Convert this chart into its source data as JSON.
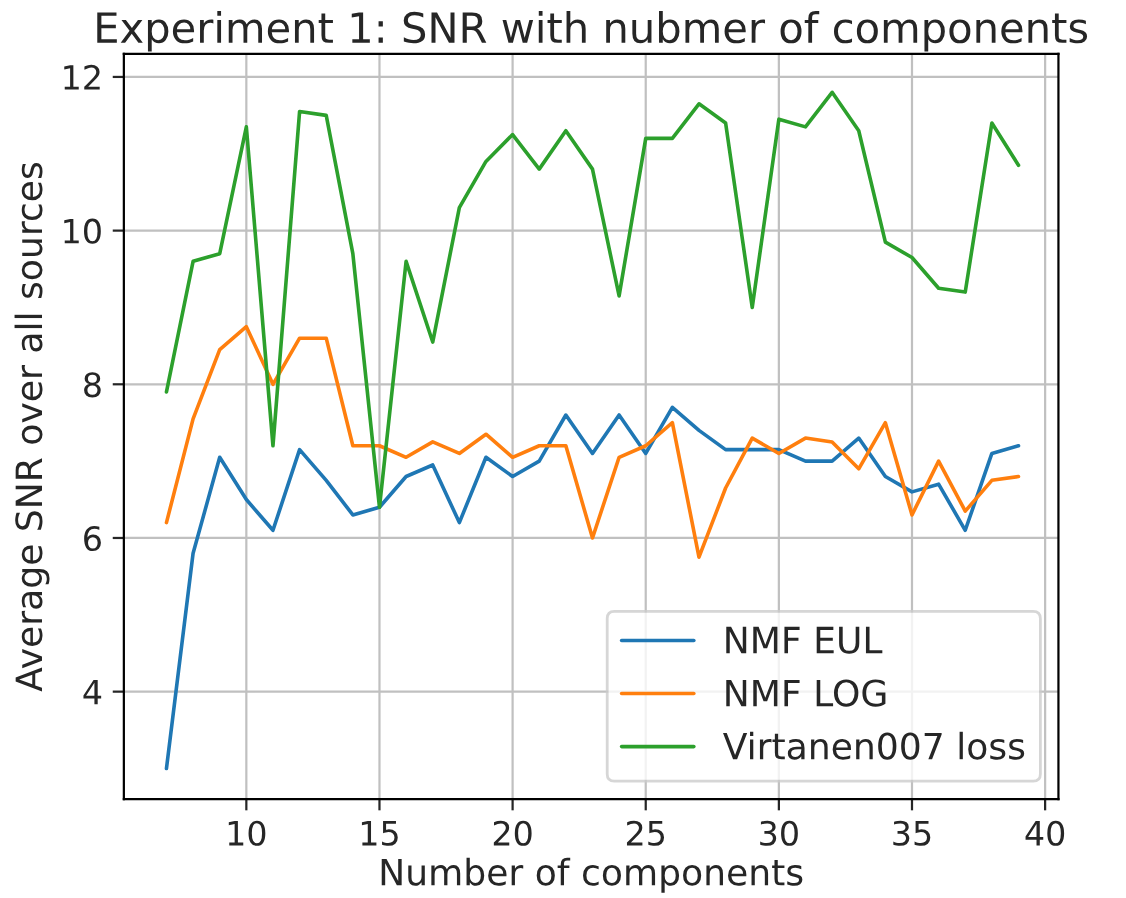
{
  "chart_data": {
    "type": "line",
    "title": "Experiment 1: SNR with nubmer of components",
    "xlabel": "Number of components",
    "ylabel": "Average SNR over all sources",
    "x": [
      7,
      8,
      9,
      10,
      11,
      12,
      13,
      14,
      15,
      16,
      17,
      18,
      19,
      20,
      21,
      22,
      23,
      24,
      25,
      26,
      27,
      28,
      29,
      30,
      31,
      32,
      33,
      34,
      35,
      36,
      37,
      38,
      39
    ],
    "series": [
      {
        "name": "NMF EUL",
        "color": "#1f77b4",
        "values": [
          3.0,
          5.8,
          7.05,
          6.5,
          6.1,
          7.15,
          6.75,
          6.3,
          6.4,
          6.8,
          6.95,
          6.2,
          7.05,
          6.8,
          7.0,
          7.6,
          7.1,
          7.6,
          7.1,
          7.7,
          7.4,
          7.15,
          7.15,
          7.15,
          7.0,
          7.0,
          7.3,
          6.8,
          6.6,
          6.7,
          6.1,
          7.1,
          7.2
        ]
      },
      {
        "name": "NMF LOG",
        "color": "#ff7f0e",
        "values": [
          6.2,
          7.55,
          8.45,
          8.75,
          8.0,
          8.6,
          8.6,
          7.2,
          7.2,
          7.05,
          7.25,
          7.1,
          7.35,
          7.05,
          7.2,
          7.2,
          6.0,
          7.05,
          7.2,
          7.5,
          5.75,
          6.65,
          7.3,
          7.1,
          7.3,
          7.25,
          6.9,
          7.5,
          6.3,
          7.0,
          6.35,
          6.75,
          6.8
        ]
      },
      {
        "name": "Virtanen007 loss",
        "color": "#2ca02c",
        "values": [
          7.9,
          9.6,
          9.7,
          11.35,
          7.2,
          11.55,
          11.5,
          9.7,
          6.4,
          9.6,
          8.55,
          10.3,
          10.9,
          11.25,
          10.8,
          11.3,
          10.8,
          9.15,
          11.2,
          11.2,
          11.65,
          11.4,
          9.0,
          11.45,
          11.35,
          11.8,
          11.3,
          9.85,
          9.65,
          9.25,
          9.2,
          11.4,
          10.85
        ]
      }
    ],
    "xlim": [
      5.4,
      40.5
    ],
    "ylim": [
      2.6,
      12.3
    ],
    "xticks": [
      10,
      15,
      20,
      25,
      30,
      35,
      40
    ],
    "yticks": [
      4,
      6,
      8,
      10,
      12
    ],
    "grid": true,
    "legend": "bottom right",
    "marker": "none",
    "line_style": "solid"
  }
}
